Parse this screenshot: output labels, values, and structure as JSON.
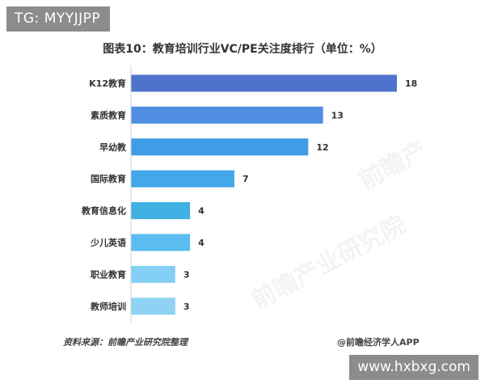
{
  "overlay": {
    "tag": "TG: MYYJJPP",
    "site": "www.hxbxg.com"
  },
  "chart_data": {
    "type": "bar",
    "orientation": "horizontal",
    "title": "图表10：教育培训行业VC/PE关注度排行（单位：%）",
    "categories": [
      "K12教育",
      "素质教育",
      "早幼教",
      "国际教育",
      "教育信息化",
      "少儿英语",
      "职业教育",
      "教师培训"
    ],
    "values": [
      18,
      13,
      12,
      7,
      4,
      4,
      3,
      3
    ],
    "colors": [
      "#4f73cc",
      "#4f8ee0",
      "#3f9ce6",
      "#43a7ea",
      "#3fb1e3",
      "#5bbcf2",
      "#84cff5",
      "#8fd2f4"
    ],
    "xlim": [
      0,
      18
    ],
    "grid": false,
    "legend": "none"
  },
  "footer": {
    "source": "资料来源：前瞻产业研究院整理",
    "brand": "@前瞻经济学人APP"
  },
  "watermarks": [
    "前瞻产业研究院",
    "前瞻产"
  ]
}
